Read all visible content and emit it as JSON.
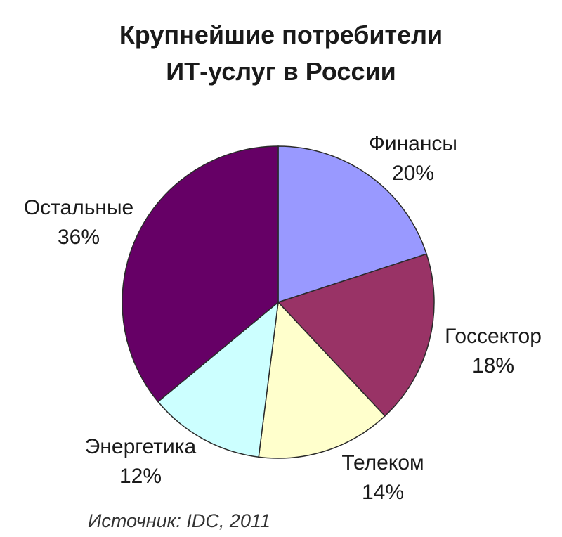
{
  "chart_data": {
    "type": "pie",
    "title_lines": [
      "Крупнейшие потребители",
      "ИТ-услуг в России"
    ],
    "source": "Источник: IDC, 2011",
    "slices": [
      {
        "label": "Финансы",
        "value": 20,
        "value_label": "20%",
        "color": "#9999FF"
      },
      {
        "label": "Госсектор",
        "value": 18,
        "value_label": "18%",
        "color": "#993366"
      },
      {
        "label": "Телеком",
        "value": 14,
        "value_label": "14%",
        "color": "#FFFFCC"
      },
      {
        "label": "Энергетика",
        "value": 12,
        "value_label": "12%",
        "color": "#CCFFFF"
      },
      {
        "label": "Остальные",
        "value": 36,
        "value_label": "36%",
        "color": "#660066"
      }
    ]
  }
}
